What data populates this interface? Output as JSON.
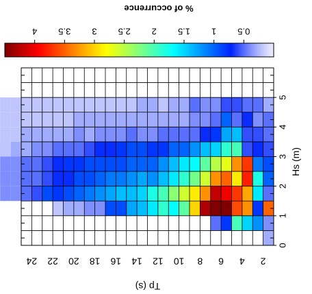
{
  "chart_data": {
    "type": "heatmap",
    "orientation": "rotated",
    "x_label": "Tp (s)",
    "y_label": "Hs (m)",
    "x_categories": [
      2,
      4,
      6,
      8,
      10,
      12,
      14,
      16,
      18,
      20,
      22,
      24
    ],
    "x_tick_labels": [
      "2",
      "4",
      "6",
      "8",
      "10",
      "12",
      "14",
      "16",
      "18",
      "20",
      "22",
      "24"
    ],
    "y_range": [
      0,
      6
    ],
    "y_bin": 0.25,
    "y_ticks": [
      0,
      1,
      2,
      3,
      4,
      5
    ],
    "y_tick_labels": [
      "0",
      "1",
      "2",
      "3",
      "4",
      "5"
    ],
    "grid": true,
    "colorbar": {
      "title": "% of occurrence",
      "range": [
        0,
        4.5
      ],
      "ticks": [
        0.5,
        1,
        1.5,
        2,
        2.5,
        3,
        3.5,
        4
      ],
      "tick_labels": [
        "0.5",
        "1",
        "1.5",
        "2",
        "2.5",
        "3",
        "3.5",
        "4"
      ],
      "colormap": "jet-with-light-lavender-low-end",
      "placement": "top"
    },
    "rows": [
      {
        "tp": 2,
        "values": [
          0.3
        ]
      },
      {
        "tp": 4,
        "values": [
          0.4,
          1.2,
          1.5,
          2.0,
          0.8,
          0.5
        ]
      },
      {
        "tp": 6,
        "values": [
          3.5,
          0.8,
          3.3,
          3.6,
          4.6,
          4.5,
          4.3,
          3.0,
          2.1,
          1.7,
          1.9,
          1.6,
          1.4,
          1.3,
          0.9,
          0.9,
          0.4,
          0.4,
          0.3,
          0.3,
          0.2
        ]
      },
      {
        "tp": 8,
        "values": [
          0.5,
          1.6,
          3.2,
          3.7,
          4.0,
          4.2,
          3.3,
          2.9,
          2.6,
          2.3,
          2.0,
          1.8,
          1.5,
          1.4,
          1.4,
          1.3,
          1.2,
          1.1,
          1.0,
          0.9,
          0.8,
          0.9,
          0.6,
          0.5,
          0.4,
          0.4,
          0.3,
          0.3,
          0.3,
          0.2,
          0.2,
          0.2,
          0.2,
          0.2
        ]
      },
      {
        "tp": 10,
        "values": [
          1.0,
          1.8,
          3.8,
          2.9,
          3.5,
          3.3,
          2.6,
          2.2,
          1.9,
          1.6,
          1.4,
          1.2,
          1.3,
          1.2,
          1.1,
          1.1,
          1.0,
          0.9,
          0.9,
          0.7,
          0.7,
          0.6,
          0.5,
          0.5,
          0.4,
          0.4,
          0.4,
          0.4,
          0.3,
          0.2,
          0.3,
          0.3,
          0.3,
          0.3,
          0.2,
          0.2,
          0.2,
          0.2,
          0.2,
          0.2,
          0.2,
          0.2,
          0.2,
          0.2
        ]
      },
      {
        "tp": 12,
        "values": [
          0.9,
          1.1,
          3.7,
          3.3,
          2.7,
          2.5,
          2.1,
          1.7,
          1.6,
          1.4,
          1.2,
          1.0,
          1.0,
          1.0,
          0.9,
          0.9,
          0.9,
          0.9,
          0.8,
          0.8,
          0.7,
          0.6,
          0.5,
          0.5,
          0.4,
          0.4,
          0.3,
          0.4,
          0.3,
          0.2,
          0.2,
          0.2,
          0.2,
          0.2,
          0.2,
          0.2,
          0.2,
          0.2,
          0.2,
          0.2
        ]
      },
      {
        "tp": 14,
        "values": [
          0.6,
          0.7,
          0.6,
          2.0,
          1.9,
          1.5,
          1.4,
          1.2,
          1.0,
          1.0,
          0.8,
          0.8,
          0.9,
          0.9,
          0.8,
          0.7,
          0.7,
          0.6,
          0.5,
          0.5,
          0.5,
          0.4,
          0.4,
          0.3,
          0.3,
          0.2,
          0.3,
          0.3,
          0.2,
          0.2,
          0.2,
          0.2,
          0.2,
          0.2,
          0.2,
          0.2,
          0.2,
          0.2
        ]
      },
      {
        "tp": 16,
        "values": [
          0.5,
          0.6,
          0.6,
          1.4,
          1.3,
          0.8,
          0.7,
          0.5,
          0.5,
          0.5,
          0.5,
          0.4,
          0.4,
          0.5,
          0.4,
          0.4,
          0.4,
          0.3,
          0.4,
          0.3,
          0.3,
          0.3,
          0.3,
          0.3,
          0.2,
          0.2,
          0.2,
          0.2,
          0.2,
          0.2,
          0.2,
          0.2,
          0.2,
          0.2,
          0.2,
          0.2,
          0.2,
          0.2,
          0.2,
          0.2
        ]
      },
      {
        "tp": 18,
        "values": [
          0.5,
          0.4,
          0.7,
          0.5,
          1.0,
          0.5,
          0.4,
          0.4,
          0.3,
          0.3,
          0.3,
          0.3,
          0.3,
          0.3,
          0.3,
          0.3,
          0.3,
          0.3,
          0.3,
          0.2,
          0.2,
          0.2,
          0.2,
          0.2,
          0.2,
          0.2,
          0.2,
          0.2,
          0.2,
          0.2,
          0.2,
          0.2,
          0.2,
          0.2,
          0.2,
          0.2,
          0.2,
          0.2,
          0.2,
          0.2
        ]
      },
      {
        "tp": 20,
        "values": [
          0.3,
          0.5,
          0.5,
          0.6,
          0.6,
          0.4,
          0.4,
          0.5,
          0.3,
          0.3,
          0.2,
          0.3,
          0.3,
          0.2,
          0.2,
          0.2,
          0.2,
          0.2,
          0.2,
          0.2,
          0.2,
          0.2,
          0.2,
          0.2,
          0.2,
          0.2,
          0.2,
          0.2,
          0.2,
          0.2,
          0.2,
          0.2,
          0.2,
          0.2,
          0.2,
          0.2
        ]
      }
    ]
  }
}
